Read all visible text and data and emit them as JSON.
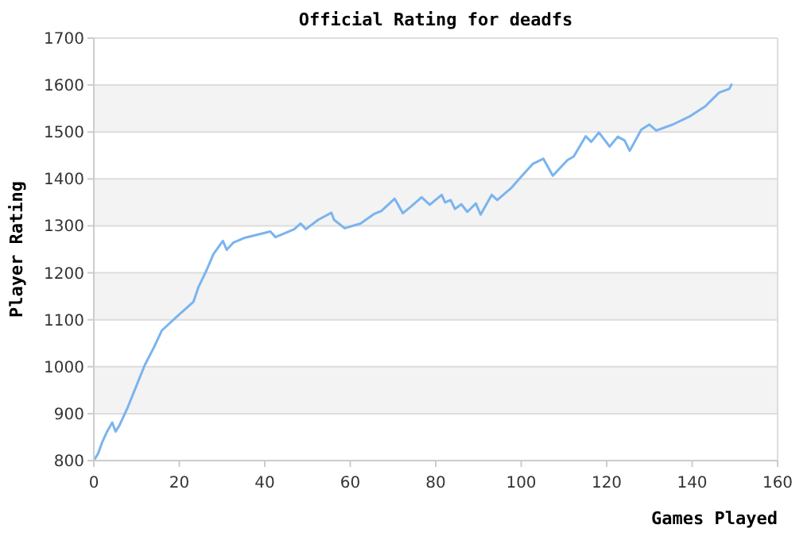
{
  "chart_data": {
    "type": "line",
    "title": "Official Rating for deadfs",
    "xlabel": "Games Played",
    "ylabel": "Player Rating",
    "xlim": [
      0,
      160
    ],
    "xticks": [
      0,
      20,
      40,
      60,
      80,
      100,
      120,
      140,
      160
    ],
    "ylim": [
      800,
      1700
    ],
    "yticks": [
      800,
      900,
      1000,
      1100,
      1200,
      1300,
      1400,
      1500,
      1600,
      1700
    ],
    "grid": "y",
    "marker": "none",
    "line_style": "solid",
    "series": [
      {
        "color": "#7ab4ee",
        "x": [
          0,
          1,
          2,
          3,
          4.3,
          5.1,
          6,
          8,
          10,
          11.9,
          14,
          15.9,
          19.6,
          23.3,
          24.5,
          26.4,
          28,
          30.2,
          31.1,
          32.6,
          35.1,
          41.3,
          42.5,
          46.9,
          48.4,
          49.6,
          52.5,
          55.6,
          56.2,
          58.7,
          62.4,
          65.5,
          67.3,
          70.4,
          72.3,
          74.2,
          76.7,
          78.6,
          81.4,
          82.2,
          83.5,
          84.5,
          86,
          87.4,
          89.4,
          90.5,
          93.1,
          94.4,
          97.7,
          100.2,
          102.7,
          105.2,
          107.4,
          110.8,
          112.3,
          115.1,
          116.4,
          118.2,
          120.7,
          122.6,
          124.2,
          125.4,
          128.1,
          130,
          131.6,
          135.5,
          139.4,
          143.1,
          146.3,
          148.7,
          149.3
        ],
        "values": [
          800,
          815,
          840,
          860,
          881,
          862,
          875,
          915,
          960,
          1003,
          1040,
          1077,
          1108,
          1138,
          1170,
          1206,
          1240,
          1268,
          1249,
          1264,
          1274,
          1288,
          1276,
          1293,
          1305,
          1293,
          1313,
          1328,
          1313,
          1295,
          1305,
          1325,
          1332,
          1358,
          1327,
          1341,
          1361,
          1345,
          1366,
          1350,
          1355,
          1336,
          1346,
          1330,
          1348,
          1324,
          1366,
          1355,
          1381,
          1407,
          1432,
          1443,
          1407,
          1440,
          1448,
          1491,
          1479,
          1499,
          1469,
          1490,
          1482,
          1460,
          1505,
          1516,
          1503,
          1516,
          1533,
          1555,
          1584,
          1592,
          1603
        ]
      }
    ]
  }
}
